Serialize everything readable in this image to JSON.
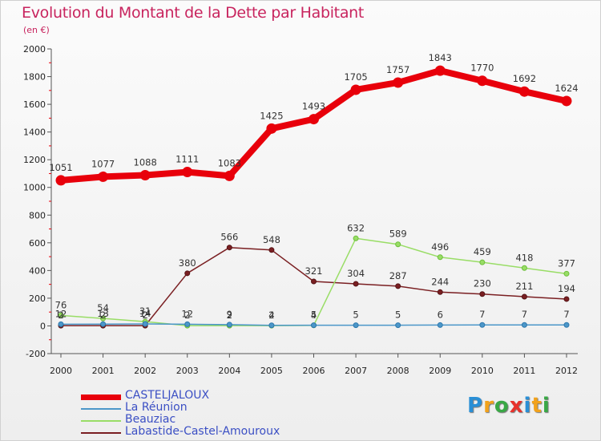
{
  "title": "Evolution du Montant de la Dette par Habitant",
  "unit": "(en €)",
  "logo": {
    "letters": [
      "P",
      "r",
      "o",
      "x",
      "i",
      "t",
      "i"
    ],
    "colors": [
      "#2a8fd6",
      "#f2a21b",
      "#39a845",
      "#e8312b",
      "#2a8fd6",
      "#f2a21b",
      "#39a845"
    ]
  },
  "chart_data": {
    "type": "line",
    "title": "Evolution du Montant de la Dette par Habitant",
    "ylabel": "(en €)",
    "xlabel": "",
    "x": [
      "2000",
      "2001",
      "2002",
      "2003",
      "2004",
      "2005",
      "2006",
      "2007",
      "2008",
      "2009",
      "2010",
      "2011",
      "2012"
    ],
    "ylim": [
      -200,
      2000
    ],
    "yticks": [
      -200,
      0,
      200,
      400,
      600,
      800,
      1000,
      1200,
      1400,
      1600,
      1800,
      2000
    ],
    "grid": false,
    "legend_position": "bottom-left",
    "series": [
      {
        "name": "CASTELJALOUX",
        "color": "#e8000b",
        "values": [
          1051,
          1077,
          1088,
          1111,
          1083,
          1425,
          1493,
          1705,
          1757,
          1843,
          1770,
          1692,
          1624
        ],
        "labels": [
          "1051",
          "1077",
          "1088",
          "1111",
          "1083",
          "1425",
          "1493",
          "1705",
          "1757",
          "1843",
          "1770",
          "1692",
          "1624"
        ]
      },
      {
        "name": "La Réunion",
        "color": "#4c97c9",
        "values": [
          12,
          13,
          14,
          12,
          9,
          4,
          5,
          5,
          5,
          6,
          7,
          7,
          7
        ],
        "labels": [
          "12",
          "13",
          "14",
          "12",
          "9",
          "4",
          "5",
          "5",
          "5",
          "6",
          "7",
          "7",
          "7"
        ]
      },
      {
        "name": "Beauziac",
        "color": "#99dd66",
        "values": [
          76,
          54,
          31,
          2,
          2,
          2,
          4,
          632,
          589,
          496,
          459,
          418,
          377
        ],
        "labels": [
          "76",
          "54",
          "31",
          "2",
          "2",
          "2",
          "4",
          "632",
          "589",
          "496",
          "459",
          "418",
          "377"
        ]
      },
      {
        "name": "Labastide-Castel-Amouroux",
        "color": "#7a1f22",
        "values": [
          2,
          2,
          2,
          380,
          566,
          548,
          321,
          304,
          287,
          244,
          230,
          211,
          194
        ],
        "labels": [
          "2",
          "2",
          "2",
          "380",
          "566",
          "548",
          "321",
          "304",
          "287",
          "244",
          "230",
          "211",
          "194"
        ]
      }
    ]
  }
}
